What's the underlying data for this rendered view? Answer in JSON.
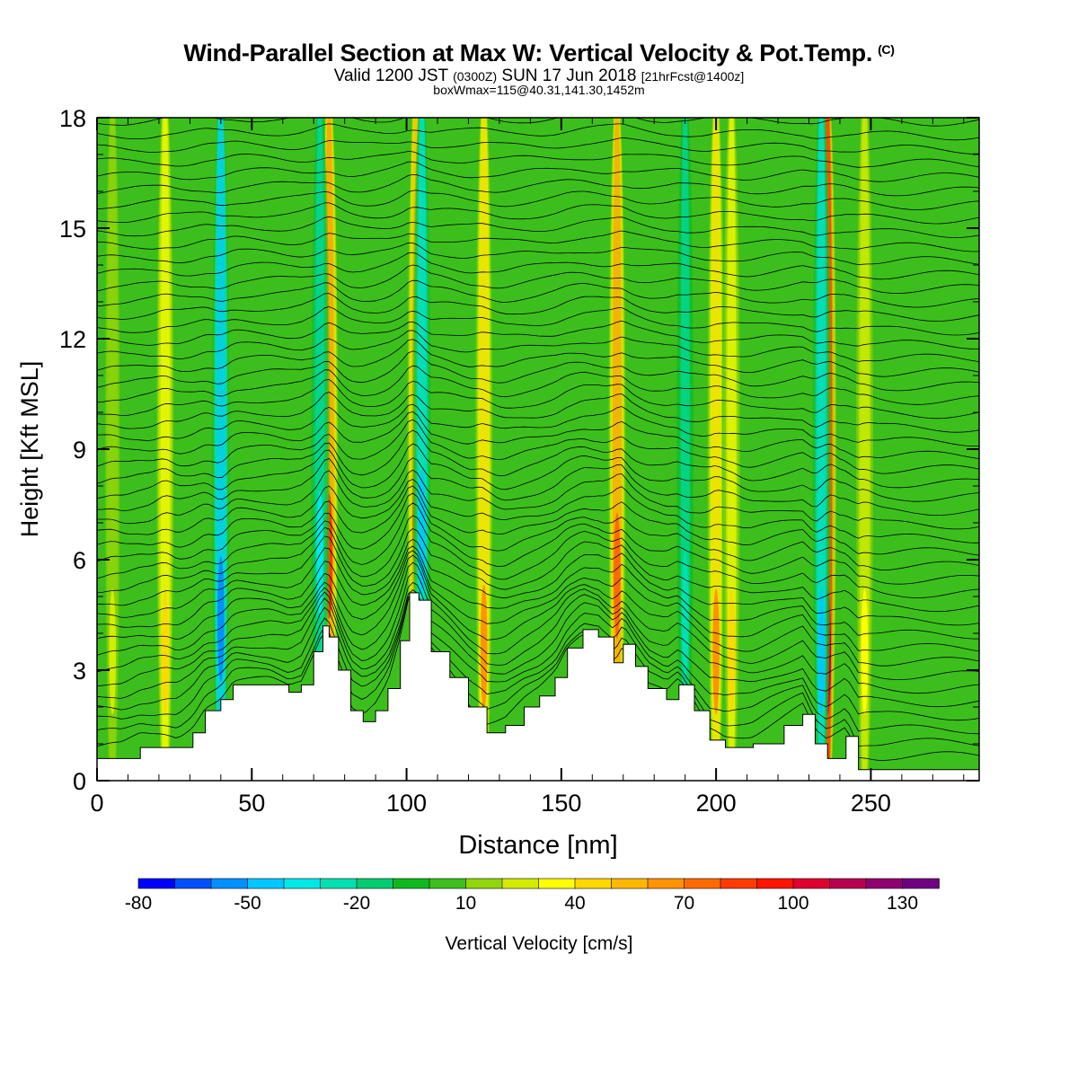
{
  "header": {
    "title": "Wind-Parallel Section at Max W: Vertical Velocity & Pot.Temp.",
    "copyright": "(C)",
    "valid_prefix": "Valid 1200 JST",
    "valid_utc": "(0300Z)",
    "valid_date": "SUN 17 Jun 2018",
    "forecast": "[21hrFcst@1400z]",
    "box_info": "boxWmax=115@40.31,141.30,1452m"
  },
  "chart_data": {
    "type": "heatmap",
    "xlabel": "Distance [nm]",
    "ylabel": "Height [Kft MSL]",
    "xlim": [
      0,
      285
    ],
    "ylim": [
      0,
      18
    ],
    "x_ticks": [
      0,
      50,
      100,
      150,
      200,
      250
    ],
    "y_ticks": [
      0,
      3,
      6,
      9,
      12,
      15,
      18
    ],
    "colorbar": {
      "label": "Vertical Velocity [cm/s]",
      "levels": [
        -80,
        -70,
        -60,
        -50,
        -40,
        -30,
        -20,
        -10,
        0,
        10,
        20,
        30,
        40,
        50,
        60,
        70,
        80,
        90,
        100,
        110,
        120,
        130,
        140
      ],
      "tick_labels": [
        "-80",
        "-50",
        "-20",
        "10",
        "40",
        "70",
        "100",
        "130"
      ],
      "colors": [
        "#0000ff",
        "#0050ff",
        "#0090ff",
        "#00c8ff",
        "#00e8e8",
        "#00e0b0",
        "#00cc70",
        "#10b820",
        "#3cbf1c",
        "#90d60a",
        "#d4ec00",
        "#ffff00",
        "#ffd800",
        "#ffb800",
        "#ff9400",
        "#ff6a00",
        "#ff3c00",
        "#ff1400",
        "#e00030",
        "#b80050",
        "#900070",
        "#700080"
      ]
    },
    "updraft_cores": [
      {
        "x": 5,
        "w": 20
      },
      {
        "x": 22,
        "w": 45
      },
      {
        "x": 40,
        "w": -60
      },
      {
        "x": 75,
        "w": 85
      },
      {
        "x": 72,
        "w": -35
      },
      {
        "x": 103,
        "w": 70
      },
      {
        "x": 105,
        "w": -50
      },
      {
        "x": 125,
        "w": 60
      },
      {
        "x": 168,
        "w": 75
      },
      {
        "x": 200,
        "w": 60
      },
      {
        "x": 205,
        "w": 40
      },
      {
        "x": 190,
        "w": -30
      },
      {
        "x": 236,
        "w": 115
      },
      {
        "x": 234,
        "w": -45
      },
      {
        "x": 248,
        "w": 30
      }
    ],
    "terrain_kft": [
      [
        0,
        0.6
      ],
      [
        8,
        0.6
      ],
      [
        14,
        0.9
      ],
      [
        26,
        0.9
      ],
      [
        31,
        1.3
      ],
      [
        35,
        1.9
      ],
      [
        40,
        2.2
      ],
      [
        44,
        2.6
      ],
      [
        56,
        2.6
      ],
      [
        62,
        2.4
      ],
      [
        66,
        2.6
      ],
      [
        70,
        3.5
      ],
      [
        73,
        4.2
      ],
      [
        75,
        3.9
      ],
      [
        78,
        3.0
      ],
      [
        82,
        1.9
      ],
      [
        86,
        1.6
      ],
      [
        90,
        1.9
      ],
      [
        94,
        2.5
      ],
      [
        98,
        3.8
      ],
      [
        101,
        5.1
      ],
      [
        104,
        4.9
      ],
      [
        108,
        3.5
      ],
      [
        114,
        2.8
      ],
      [
        120,
        2.0
      ],
      [
        126,
        1.3
      ],
      [
        132,
        1.5
      ],
      [
        138,
        2.0
      ],
      [
        143,
        2.3
      ],
      [
        148,
        2.8
      ],
      [
        152,
        3.6
      ],
      [
        157,
        4.1
      ],
      [
        162,
        3.9
      ],
      [
        167,
        3.2
      ],
      [
        170,
        3.7
      ],
      [
        174,
        3.1
      ],
      [
        178,
        2.5
      ],
      [
        184,
        2.2
      ],
      [
        188,
        2.6
      ],
      [
        193,
        1.9
      ],
      [
        198,
        1.1
      ],
      [
        203,
        0.9
      ],
      [
        212,
        1.0
      ],
      [
        222,
        1.5
      ],
      [
        228,
        1.8
      ],
      [
        232,
        1.0
      ],
      [
        236,
        0.6
      ],
      [
        242,
        1.2
      ],
      [
        246,
        0.3
      ],
      [
        262,
        0.3
      ],
      [
        285,
        0.3
      ]
    ]
  }
}
